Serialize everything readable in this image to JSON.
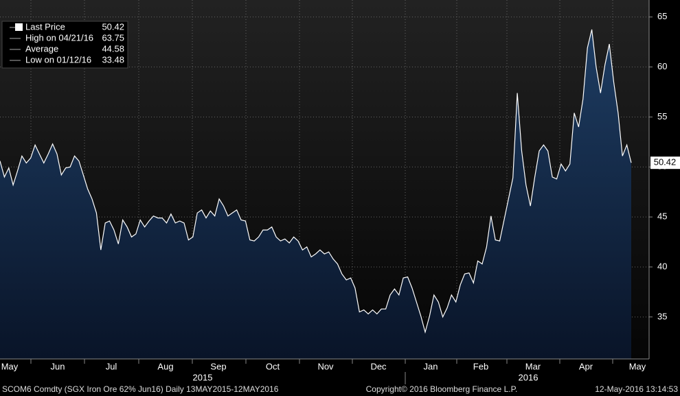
{
  "chart_data": {
    "type": "area",
    "series": [
      {
        "name": "Last Price",
        "color": "#ffffff",
        "values": [
          50.6,
          49.0,
          49.9,
          48.2,
          49.6,
          51.1,
          50.4,
          50.9,
          52.2,
          51.3,
          50.4,
          51.3,
          52.3,
          51.3,
          49.2,
          49.9,
          50.0,
          51.1,
          50.6,
          49.2,
          47.8,
          46.8,
          45.4,
          41.7,
          44.4,
          44.6,
          43.7,
          42.3,
          44.7,
          44.0,
          43.0,
          43.3,
          44.7,
          44.0,
          44.6,
          45.1,
          44.9,
          44.9,
          44.4,
          45.3,
          44.4,
          44.6,
          44.4,
          42.7,
          43.0,
          45.4,
          45.7,
          44.9,
          45.6,
          45.1,
          46.8,
          46.1,
          45.1,
          45.4,
          45.7,
          44.7,
          44.6,
          42.7,
          42.6,
          43.0,
          43.7,
          43.7,
          44.0,
          43.0,
          42.6,
          42.8,
          42.4,
          43.0,
          42.6,
          41.7,
          42.0,
          41.0,
          41.3,
          41.7,
          41.3,
          41.5,
          40.8,
          40.3,
          39.3,
          38.7,
          38.9,
          37.9,
          35.5,
          35.7,
          35.3,
          35.7,
          35.3,
          35.8,
          35.8,
          37.2,
          37.8,
          37.2,
          38.9,
          39.0,
          37.9,
          36.5,
          35.1,
          33.48,
          35.1,
          37.2,
          36.5,
          35.0,
          35.9,
          37.2,
          36.5,
          38.2,
          39.3,
          39.4,
          38.4,
          40.6,
          40.3,
          42.0,
          45.1,
          42.7,
          42.6,
          44.7,
          46.8,
          48.9,
          57.4,
          51.6,
          48.2,
          46.1,
          49.0,
          51.6,
          52.2,
          51.6,
          49.0,
          48.8,
          50.3,
          49.6,
          50.3,
          55.4,
          54.0,
          56.8,
          61.9,
          63.75,
          60.0,
          57.4,
          60.2,
          62.3,
          58.5,
          55.4,
          51.1,
          52.2,
          50.42
        ]
      }
    ],
    "fill_colors": [
      "#1e3d63",
      "#091428"
    ],
    "stats": [
      {
        "label": "High on 04/21/16",
        "value": 63.75
      },
      {
        "label": "Average",
        "value": 44.58
      },
      {
        "label": "Low on 01/12/16",
        "value": 33.48
      }
    ],
    "month_labels": [
      "May",
      "Jun",
      "Jul",
      "Aug",
      "Sep",
      "Oct",
      "Nov",
      "Dec",
      "Jan",
      "Feb",
      "Mar",
      "Apr",
      "May"
    ],
    "year_labels": [
      "2015",
      "2016"
    ],
    "ylim": [
      30.8,
      66.7
    ],
    "yticks": [
      35,
      40,
      45,
      50,
      55,
      60,
      65
    ],
    "grid": true,
    "footer": {
      "left": "SCOM6 Comdty (SGX Iron Ore 62%  Jun16)  Daily 13MAY2015-12MAY2016",
      "center": "Copyright© 2016 Bloomberg Finance L.P.",
      "right": "12-May-2016 13:14:53"
    }
  }
}
